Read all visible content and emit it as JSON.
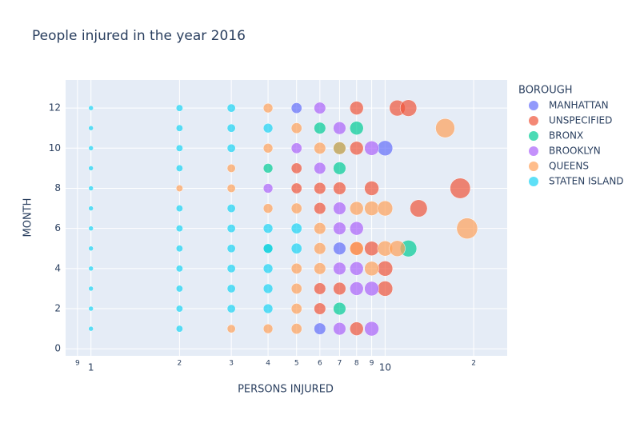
{
  "chart_data": {
    "type": "scatter",
    "title": "People injured in the year 2016",
    "x_label": "PERSONS INJURED",
    "y_label": "MONTH",
    "legend_title": "BOROUGH",
    "x_log": true,
    "grid": true,
    "xlim": [
      0.82,
      26
    ],
    "ylim": [
      -0.35,
      13.4
    ],
    "xticks": [
      {
        "value": 0.9,
        "label": "9"
      },
      1,
      2,
      3,
      4,
      5,
      6,
      7,
      8,
      9,
      10,
      {
        "value": 20,
        "label": "2"
      }
    ],
    "yticks": [
      0,
      2,
      4,
      6,
      8,
      10,
      12
    ],
    "series": [
      {
        "name": "MANHATTAN",
        "color": "#636efa",
        "x": [
          5,
          6,
          7,
          10
        ],
        "y": [
          12,
          1,
          5,
          10
        ]
      },
      {
        "name": "UNSPECIFIED",
        "color": "#ef553b",
        "x": [
          5,
          5,
          6,
          6,
          6,
          6,
          7,
          7,
          8,
          8,
          8,
          8,
          9,
          9,
          10,
          10,
          11,
          12,
          13,
          18
        ],
        "y": [
          8,
          9,
          2,
          3,
          7,
          8,
          3,
          8,
          1,
          5,
          10,
          12,
          5,
          8,
          3,
          4,
          12,
          12,
          7,
          8
        ]
      },
      {
        "name": "BRONX",
        "color": "#00cc96",
        "x": [
          4,
          4,
          6,
          7,
          7,
          7,
          8,
          12
        ],
        "y": [
          5,
          9,
          11,
          2,
          9,
          10,
          11,
          5
        ]
      },
      {
        "name": "BROOKLYN",
        "color": "#ab63fa",
        "x": [
          4,
          5,
          6,
          6,
          7,
          7,
          7,
          7,
          7,
          8,
          8,
          8,
          9,
          9,
          9
        ],
        "y": [
          8,
          10,
          9,
          12,
          1,
          4,
          6,
          7,
          11,
          3,
          4,
          6,
          1,
          3,
          10
        ]
      },
      {
        "name": "QUEENS",
        "color": "#ffa15a",
        "x": [
          2,
          3,
          3,
          3,
          4,
          4,
          4,
          4,
          5,
          5,
          5,
          5,
          5,
          5,
          6,
          6,
          6,
          6,
          7,
          8,
          8,
          9,
          9,
          10,
          10,
          11,
          16,
          19
        ],
        "y": [
          8,
          1,
          8,
          9,
          1,
          7,
          10,
          12,
          1,
          2,
          3,
          4,
          7,
          11,
          4,
          5,
          6,
          10,
          10,
          5,
          7,
          4,
          7,
          5,
          7,
          5,
          11,
          6
        ]
      },
      {
        "name": "STATEN ISLAND",
        "color": "#19d3f3",
        "x": [
          1,
          1,
          1,
          1,
          1,
          1,
          1,
          1,
          1,
          1,
          1,
          1,
          2,
          2,
          2,
          2,
          2,
          2,
          2,
          2,
          2,
          2,
          2,
          3,
          3,
          3,
          3,
          3,
          3,
          3,
          3,
          3,
          4,
          4,
          4,
          4,
          4,
          4,
          5,
          5
        ],
        "y": [
          1,
          2,
          3,
          4,
          5,
          6,
          7,
          8,
          9,
          10,
          11,
          12,
          1,
          2,
          3,
          4,
          5,
          6,
          7,
          9,
          10,
          11,
          12,
          2,
          3,
          4,
          5,
          6,
          7,
          10,
          11,
          12,
          2,
          3,
          4,
          5,
          6,
          11,
          5,
          6
        ]
      }
    ]
  }
}
